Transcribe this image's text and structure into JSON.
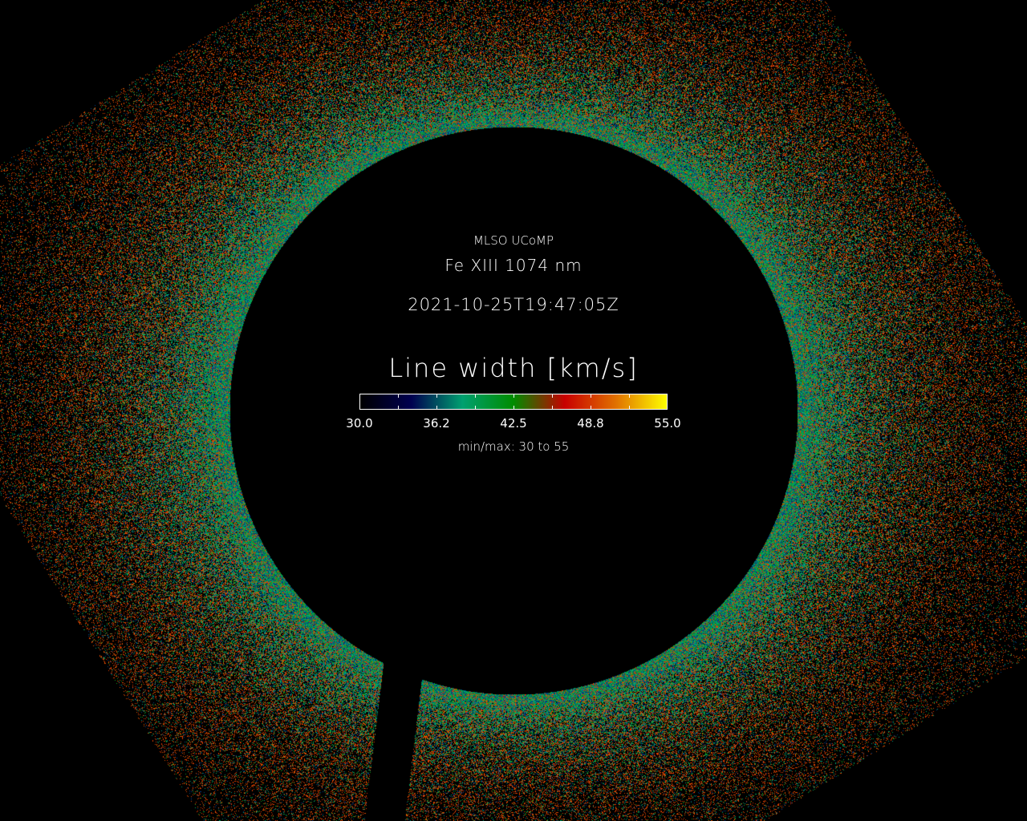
{
  "header": {
    "observatory": "MLSO UCoMP",
    "line": "Fe XIII 1074 nm",
    "datetime": "2021-10-25T19:47:05Z"
  },
  "colorbar": {
    "title": "Line width [km/s]",
    "min": 30,
    "max": 55,
    "tick_labels": [
      "30.0",
      "36.2",
      "42.5",
      "48.8",
      "55.0"
    ],
    "minmax_label": "min/max: 30 to 55",
    "colors": [
      "#000000",
      "#000050",
      "#00a070",
      "#008c00",
      "#c80000",
      "#e07000",
      "#ffff00"
    ]
  }
}
